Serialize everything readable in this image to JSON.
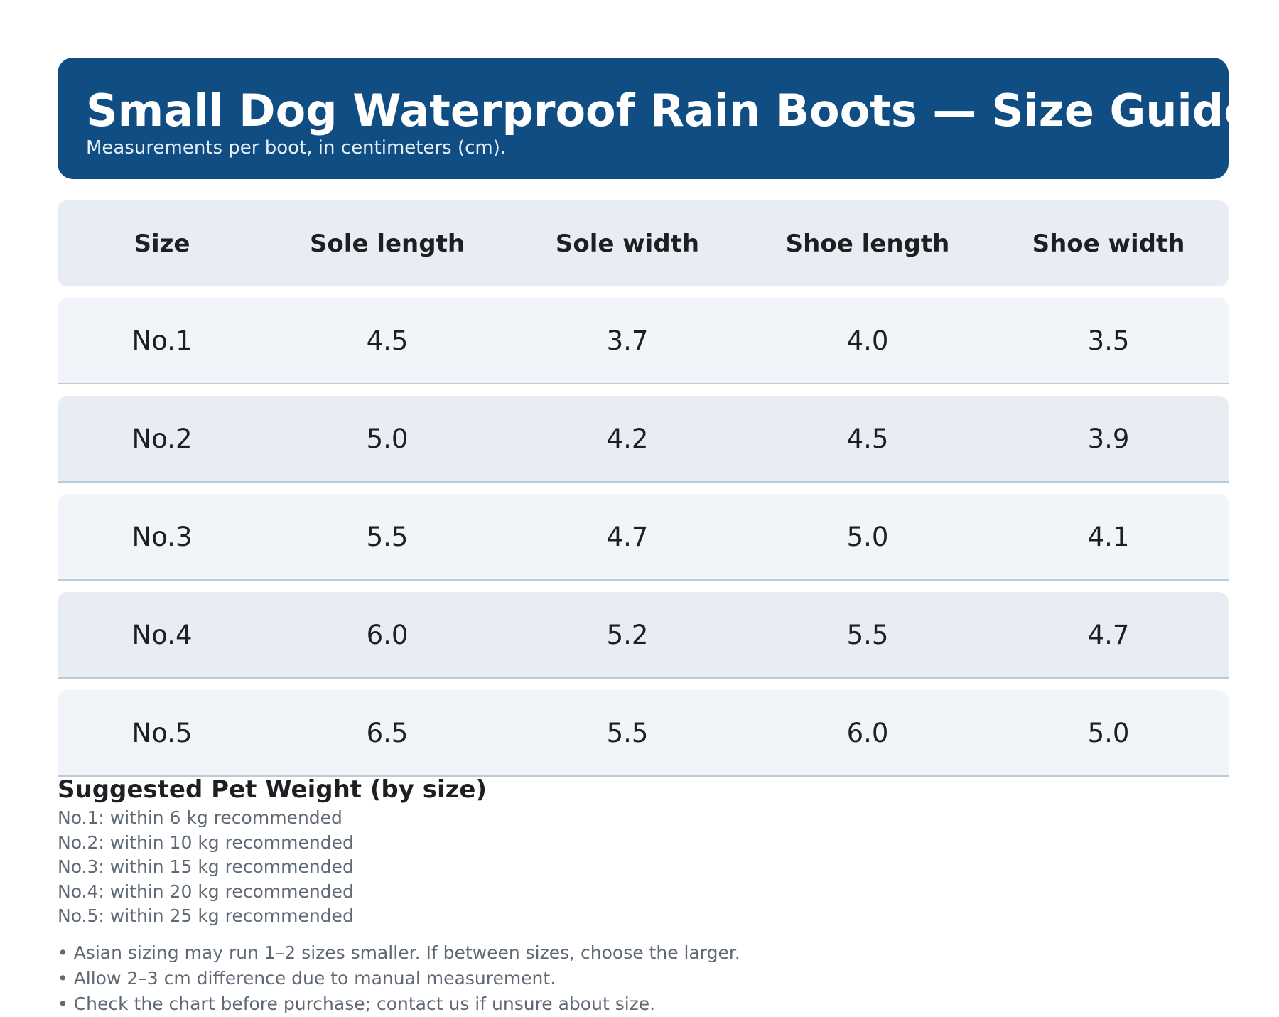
{
  "header": {
    "title": "Small Dog Waterproof Rain Boots — Size Guide",
    "subtitle": "Measurements per boot, in centimeters (cm).",
    "color": "#104d82"
  },
  "table": {
    "columns": [
      "Size",
      "Sole length",
      "Sole width",
      "Shoe length",
      "Shoe width"
    ],
    "rows": [
      [
        "No.1",
        "4.5",
        "3.7",
        "4.0",
        "3.5"
      ],
      [
        "No.2",
        "5.0",
        "4.2",
        "4.5",
        "3.9"
      ],
      [
        "No.3",
        "5.5",
        "4.7",
        "5.0",
        "4.1"
      ],
      [
        "No.4",
        "6.0",
        "5.2",
        "5.5",
        "4.7"
      ],
      [
        "No.5",
        "6.5",
        "5.5",
        "6.0",
        "5.0"
      ]
    ]
  },
  "weights": {
    "title": "Suggested Pet Weight (by size)",
    "items": [
      "No.1: within 6 kg recommended",
      "No.2: within 10 kg recommended",
      "No.3: within 15 kg recommended",
      "No.4: within 20 kg recommended",
      "No.5: within 25 kg recommended"
    ]
  },
  "notes": [
    "• Asian sizing may run 1–2 sizes smaller. If between sizes, choose the larger.",
    "• Allow 2–3 cm difference due to manual measurement.",
    "• Check the chart before purchase; contact us if unsure about size."
  ]
}
